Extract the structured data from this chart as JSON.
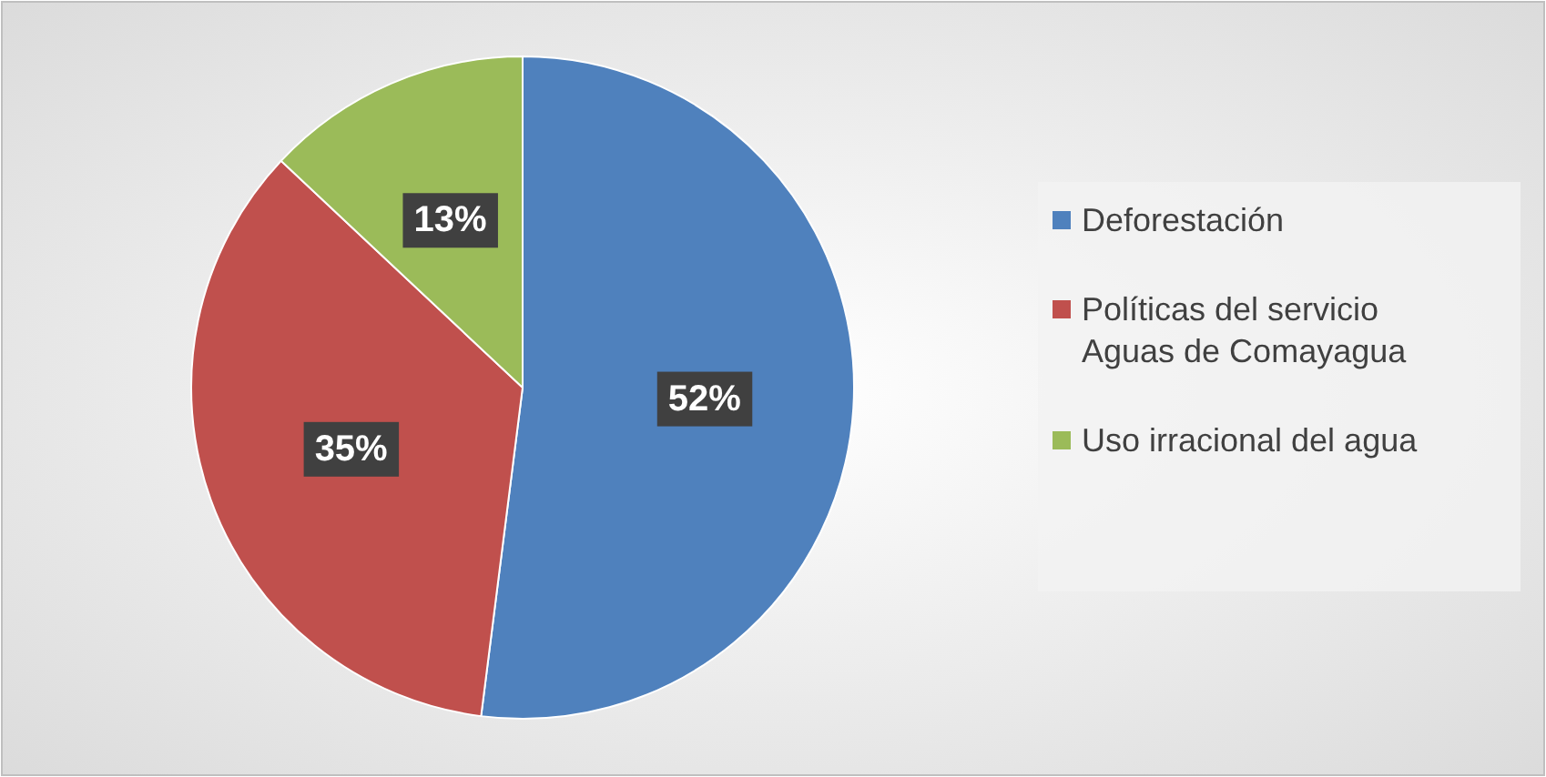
{
  "chart_data": {
    "type": "pie",
    "categories": [
      "Deforestación",
      "Políticas del servicio Aguas de Comayagua",
      "Uso irracional del agua"
    ],
    "values": [
      52,
      35,
      13
    ],
    "colors": [
      "#4f81bd",
      "#c0504d",
      "#9bbb59"
    ],
    "value_labels": [
      "52%",
      "35%",
      "13%"
    ],
    "legend": "right"
  }
}
